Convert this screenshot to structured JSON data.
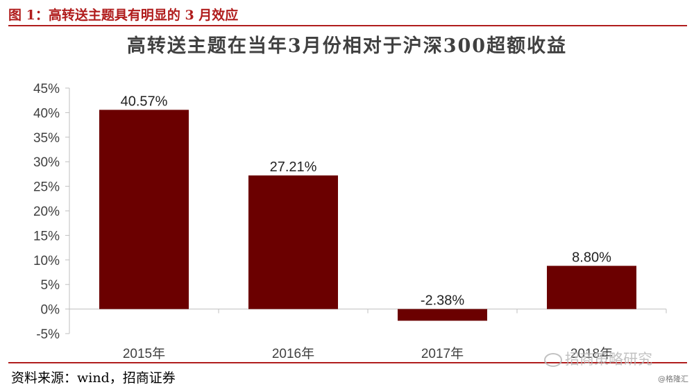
{
  "figure": {
    "caption": "图 1：高转送主题具有明显的 3 月效应",
    "source": "资料来源：wind，招商证券",
    "watermark": "招商策略研究",
    "credit": "@格隆汇"
  },
  "chart_data": {
    "type": "bar",
    "title": "高转送主题在当年3月份相对于沪深300超额收益",
    "categories": [
      "2015年",
      "2016年",
      "2017年",
      "2018年"
    ],
    "values": [
      40.57,
      27.21,
      -2.38,
      8.8
    ],
    "data_labels": [
      "40.57%",
      "27.21%",
      "-2.38%",
      "8.80%"
    ],
    "ylim": [
      -5,
      45
    ],
    "yticks": [
      -5,
      0,
      5,
      10,
      15,
      20,
      25,
      30,
      35,
      40,
      45
    ],
    "ytick_labels": [
      "-5%",
      "0%",
      "5%",
      "10%",
      "15%",
      "20%",
      "25%",
      "30%",
      "35%",
      "40%",
      "45%"
    ],
    "xlabel": "",
    "ylabel": "",
    "grid": false,
    "legend": "none",
    "bar_color": "#6b0000"
  }
}
